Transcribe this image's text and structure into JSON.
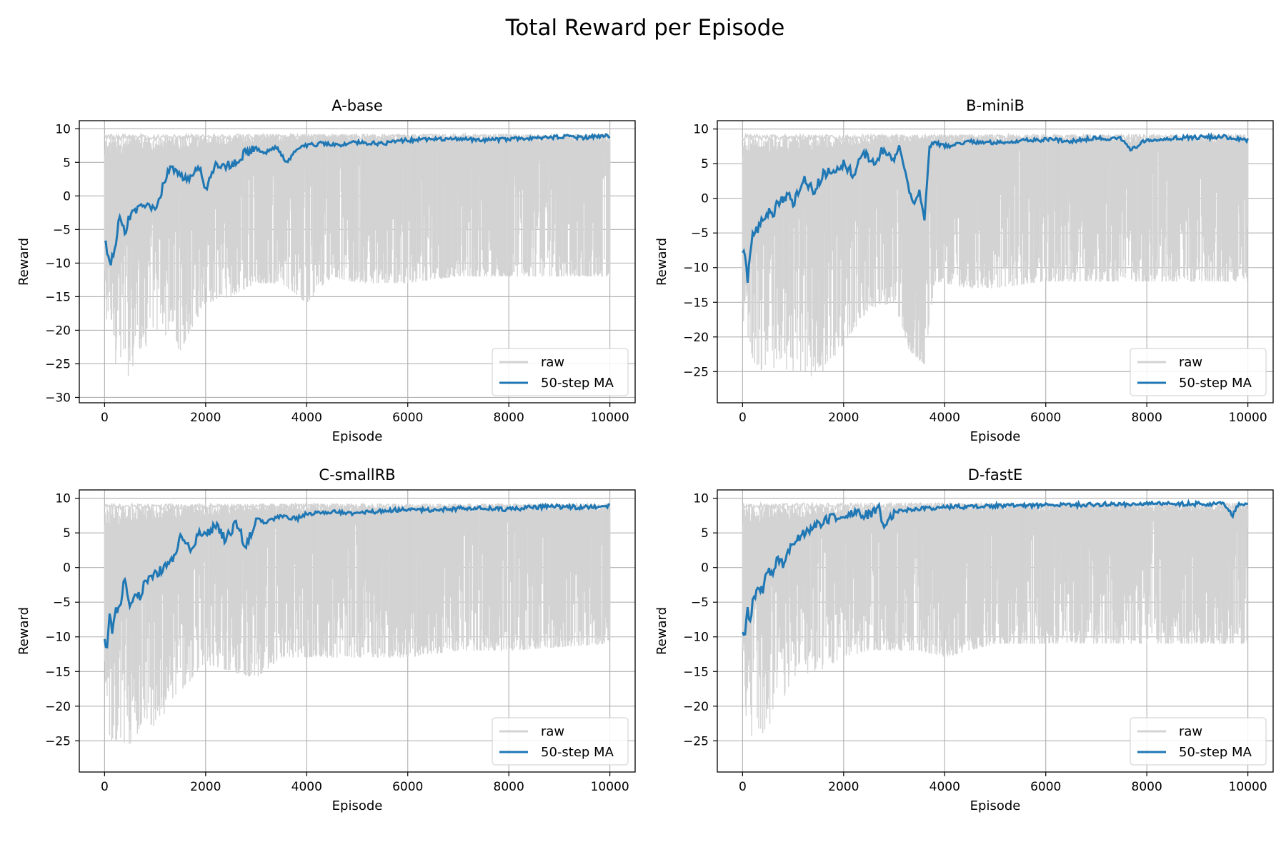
{
  "figure": {
    "title": "Total Reward per Episode"
  },
  "colors": {
    "raw": "#d3d3d3",
    "ma": "#1f77b4",
    "grid": "#b0b0b0",
    "axis": "#000000"
  },
  "chart_data": [
    {
      "type": "line",
      "title": "A-base",
      "xlabel": "Episode",
      "ylabel": "Reward",
      "xlim": [
        -500,
        10500
      ],
      "ylim": [
        -30.8,
        11.2
      ],
      "xticks": [
        0,
        2000,
        4000,
        6000,
        8000,
        10000
      ],
      "yticks": [
        -30,
        -25,
        -20,
        -15,
        -10,
        -5,
        0,
        5,
        10
      ],
      "grid": true,
      "legend": {
        "position": "lower-right",
        "entries": [
          "raw",
          "50-step MA"
        ]
      },
      "raw_range": {
        "x": [
          0,
          10000
        ],
        "upper_max": 9.2,
        "spike_episodes": [
          3400,
          3700,
          4000,
          4300,
          4500,
          4700,
          4900,
          5100,
          5300,
          5500,
          5800,
          6100,
          6300,
          6500,
          6700,
          6900,
          7100,
          7300,
          7500,
          7700,
          7800,
          7900,
          8100,
          9800
        ],
        "floor_profile": [
          [
            0,
            -25
          ],
          [
            300,
            -26
          ],
          [
            400,
            -29
          ],
          [
            1000,
            -20
          ],
          [
            1500,
            -23
          ],
          [
            2000,
            -16
          ],
          [
            2500,
            -15
          ],
          [
            3000,
            -13
          ],
          [
            3500,
            -13
          ],
          [
            4000,
            -16
          ],
          [
            4500,
            -12
          ],
          [
            5000,
            -13
          ],
          [
            6000,
            -13
          ],
          [
            7000,
            -12
          ],
          [
            8000,
            -12
          ],
          [
            10000,
            -12
          ]
        ]
      },
      "series": [
        {
          "name": "raw",
          "x_range": [
            0,
            10000
          ],
          "y_min": -29,
          "y_max": 9.3
        },
        {
          "name": "50-step MA",
          "x": [
            0,
            50,
            100,
            200,
            300,
            400,
            500,
            700,
            900,
            1000,
            1200,
            1300,
            1500,
            1700,
            1900,
            2000,
            2200,
            2500,
            2800,
            3000,
            3200,
            3400,
            3600,
            3800,
            4000,
            4300,
            4600,
            5000,
            5500,
            6000,
            6500,
            7000,
            7500,
            8000,
            8500,
            9000,
            9500,
            10000
          ],
          "y": [
            -6.5,
            -8,
            -10,
            -8.5,
            -3,
            -5.5,
            -3,
            -2,
            -1.5,
            -2.5,
            2.5,
            4.5,
            3,
            2.5,
            4.5,
            0.5,
            5,
            4.5,
            6.5,
            7,
            6.5,
            7.2,
            5,
            6.8,
            7.5,
            7.8,
            7.5,
            8,
            7.8,
            8.3,
            8.4,
            8.5,
            8.2,
            8.5,
            8.6,
            8.8,
            8.7,
            8.9
          ]
        }
      ]
    },
    {
      "type": "line",
      "title": "B-miniB",
      "xlabel": "Episode",
      "ylabel": "Reward",
      "xlim": [
        -500,
        10500
      ],
      "ylim": [
        -29.5,
        11.2
      ],
      "xticks": [
        0,
        2000,
        4000,
        6000,
        8000,
        10000
      ],
      "yticks": [
        -25,
        -20,
        -15,
        -10,
        -5,
        0,
        5,
        10
      ],
      "grid": true,
      "legend": {
        "position": "lower-right",
        "entries": [
          "raw",
          "50-step MA"
        ]
      },
      "raw_range": {
        "x": [
          0,
          10000
        ],
        "upper_max": 9.2,
        "spike_episodes": [
          3900,
          4100,
          4300,
          4500,
          4800,
          4900,
          5300,
          5600,
          5800,
          6200,
          6500,
          6800,
          7100,
          7400,
          7700,
          8100,
          8200,
          8800,
          9300,
          9500,
          9800
        ],
        "floor_profile": [
          [
            0,
            -22
          ],
          [
            200,
            -28
          ],
          [
            400,
            -25
          ],
          [
            1000,
            -25
          ],
          [
            1500,
            -26
          ],
          [
            2000,
            -21
          ],
          [
            2500,
            -16
          ],
          [
            3000,
            -15
          ],
          [
            3300,
            -22
          ],
          [
            3600,
            -24
          ],
          [
            3800,
            -12
          ],
          [
            4500,
            -13
          ],
          [
            5000,
            -13
          ],
          [
            6000,
            -12
          ],
          [
            8000,
            -12
          ],
          [
            10000,
            -12
          ]
        ]
      },
      "series": [
        {
          "name": "raw",
          "x_range": [
            0,
            10000
          ],
          "y_min": -28,
          "y_max": 9.3
        },
        {
          "name": "50-step MA",
          "x": [
            0,
            50,
            100,
            150,
            200,
            300,
            400,
            500,
            600,
            700,
            900,
            1000,
            1200,
            1400,
            1600,
            1800,
            2000,
            2200,
            2400,
            2600,
            2800,
            3000,
            3100,
            3200,
            3300,
            3400,
            3500,
            3600,
            3700,
            3800,
            4000,
            4500,
            5000,
            5500,
            6000,
            6500,
            7000,
            7500,
            7700,
            8000,
            8500,
            9000,
            9500,
            10000
          ],
          "y": [
            -7.5,
            -9,
            -12,
            -8,
            -5,
            -4.5,
            -3,
            -2,
            -2.5,
            -0.5,
            0.5,
            -1,
            3,
            1,
            3.5,
            4,
            5,
            3.5,
            6.5,
            5,
            7.2,
            5.5,
            7.5,
            4.5,
            1,
            -1,
            1,
            -3,
            7.5,
            8,
            7.5,
            8.2,
            8,
            8.3,
            8.5,
            8.3,
            8.7,
            8.6,
            7,
            8.5,
            8.7,
            8.8,
            8.9,
            8.4
          ]
        }
      ]
    },
    {
      "type": "line",
      "title": "C-smallRB",
      "xlabel": "Episode",
      "ylabel": "Reward",
      "xlim": [
        -500,
        10500
      ],
      "ylim": [
        -29.5,
        11.2
      ],
      "xticks": [
        0,
        2000,
        4000,
        6000,
        8000,
        10000
      ],
      "yticks": [
        -25,
        -20,
        -15,
        -10,
        -5,
        0,
        5,
        10
      ],
      "grid": true,
      "legend": {
        "position": "lower-right",
        "entries": [
          "raw",
          "50-step MA"
        ]
      },
      "raw_range": {
        "x": [
          0,
          10000
        ],
        "upper_max": 9.2,
        "spike_episodes": [
          3100,
          3300,
          3500,
          3700,
          3900,
          4100,
          4300,
          4500,
          4800,
          5100,
          5400,
          5700,
          6000,
          6300,
          6600,
          6900,
          7200,
          7500,
          7800,
          8100,
          8400,
          8700,
          9000,
          9200,
          9900
        ],
        "floor_profile": [
          [
            0,
            -27
          ],
          [
            200,
            -26
          ],
          [
            400,
            -27
          ],
          [
            700,
            -24
          ],
          [
            1000,
            -23
          ],
          [
            1500,
            -18
          ],
          [
            2000,
            -14
          ],
          [
            2500,
            -15
          ],
          [
            3000,
            -16
          ],
          [
            3500,
            -13
          ],
          [
            4000,
            -13
          ],
          [
            5000,
            -13
          ],
          [
            6000,
            -13
          ],
          [
            7000,
            -12
          ],
          [
            8000,
            -12
          ],
          [
            10000,
            -11
          ]
        ]
      },
      "series": [
        {
          "name": "raw",
          "x_range": [
            0,
            10000
          ],
          "y_min": -27.5,
          "y_max": 9.3
        },
        {
          "name": "50-step MA",
          "x": [
            0,
            50,
            100,
            150,
            200,
            300,
            400,
            500,
            700,
            800,
            1000,
            1200,
            1400,
            1500,
            1700,
            1900,
            2000,
            2200,
            2400,
            2600,
            2800,
            3000,
            3200,
            3500,
            3800,
            4000,
            4500,
            5000,
            5500,
            6000,
            6500,
            7000,
            7500,
            8000,
            8500,
            9000,
            9500,
            10000
          ],
          "y": [
            -10,
            -12,
            -6,
            -9,
            -6.5,
            -6,
            -1.5,
            -5,
            -4,
            -2,
            -1,
            0,
            1.5,
            5,
            3,
            5,
            4.5,
            6,
            4,
            6.5,
            3,
            7,
            6.5,
            7.5,
            7,
            7.8,
            8,
            7.8,
            8.2,
            8.4,
            8.3,
            8.5,
            8.6,
            8.4,
            8.7,
            8.8,
            8.7,
            8.9
          ]
        }
      ]
    },
    {
      "type": "line",
      "title": "D-fastE",
      "xlabel": "Episode",
      "ylabel": "Reward",
      "xlim": [
        -500,
        10500
      ],
      "ylim": [
        -29.5,
        11.2
      ],
      "xticks": [
        0,
        2000,
        4000,
        6000,
        8000,
        10000
      ],
      "yticks": [
        -25,
        -20,
        -15,
        -10,
        -5,
        0,
        5,
        10
      ],
      "grid": true,
      "legend": {
        "position": "lower-right",
        "entries": [
          "raw",
          "50-step MA"
        ]
      },
      "raw_range": {
        "x": [
          0,
          10000
        ],
        "upper_max": 9.3,
        "spike_episodes": [
          2900,
          3100,
          3300,
          3500,
          3700,
          3900,
          4100,
          4300,
          4600,
          4900,
          5300,
          5500,
          6600,
          6800,
          7000,
          7200,
          8200,
          8400,
          8800,
          9200,
          9700,
          9800
        ],
        "floor_profile": [
          [
            0,
            -23
          ],
          [
            200,
            -27
          ],
          [
            400,
            -24
          ],
          [
            700,
            -22
          ],
          [
            1000,
            -16
          ],
          [
            1500,
            -15
          ],
          [
            2000,
            -13
          ],
          [
            2500,
            -12
          ],
          [
            3000,
            -12
          ],
          [
            3500,
            -12
          ],
          [
            4000,
            -13
          ],
          [
            5000,
            -11
          ],
          [
            6000,
            -11
          ],
          [
            7000,
            -11
          ],
          [
            8000,
            -11
          ],
          [
            10000,
            -11
          ]
        ]
      },
      "series": [
        {
          "name": "raw",
          "x_range": [
            0,
            10000
          ],
          "y_min": -27.5,
          "y_max": 9.4
        },
        {
          "name": "50-step MA",
          "x": [
            0,
            50,
            100,
            150,
            200,
            300,
            400,
            500,
            600,
            700,
            800,
            1000,
            1200,
            1400,
            1600,
            1800,
            2000,
            2200,
            2500,
            2700,
            2800,
            3000,
            3200,
            3500,
            4000,
            4500,
            5000,
            6000,
            7000,
            8000,
            9000,
            9500,
            9700,
            9800,
            10000
          ],
          "y": [
            -9,
            -10,
            -6,
            -8,
            -5,
            -3,
            -3.5,
            0,
            -1,
            1.5,
            0.5,
            3.5,
            5,
            6,
            6.5,
            7.5,
            7,
            8,
            7.5,
            8.5,
            6,
            8,
            8.3,
            8.5,
            8.7,
            8.8,
            8.9,
            9,
            9.1,
            9.2,
            9.2,
            9.2,
            7.5,
            9.1,
            9.1
          ]
        }
      ]
    }
  ]
}
